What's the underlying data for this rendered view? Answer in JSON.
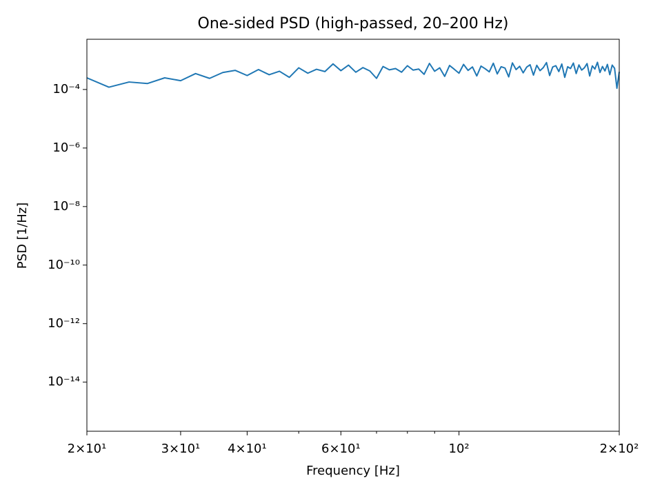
{
  "chart_data": {
    "type": "line",
    "title": "One-sided PSD (high-passed, 20–200 Hz)",
    "x_label": "Frequency [Hz]",
    "y_label": "PSD [1/Hz]",
    "xscale": "log",
    "yscale": "log",
    "xlim": [
      20,
      200
    ],
    "ylim": [
      2.1e-16,
      0.0052
    ],
    "xticks": [
      {
        "value": 20,
        "label": "2×10¹"
      },
      {
        "value": 30,
        "label": "3×10¹"
      },
      {
        "value": 40,
        "label": "4×10¹"
      },
      {
        "value": 60,
        "label": "6×10¹"
      },
      {
        "value": 100,
        "label": "10²"
      },
      {
        "value": 200,
        "label": "2×10²"
      }
    ],
    "xminor_ticks": [
      50,
      70,
      80,
      90
    ],
    "yticks": [
      {
        "value": 1e-14,
        "label": "10⁻¹⁴"
      },
      {
        "value": 1e-12,
        "label": "10⁻¹²"
      },
      {
        "value": 1e-10,
        "label": "10⁻¹⁰"
      },
      {
        "value": 1e-08,
        "label": "10⁻⁸"
      },
      {
        "value": 1e-06,
        "label": "10⁻⁶"
      },
      {
        "value": 0.0001,
        "label": "10⁻⁴"
      }
    ],
    "x": [
      20,
      22,
      24,
      26,
      28,
      30,
      32,
      34,
      36,
      38,
      40,
      42,
      44,
      46,
      48,
      50,
      52,
      54,
      56,
      58,
      60,
      62,
      64,
      66,
      68,
      70,
      72,
      74,
      76,
      78,
      80,
      82,
      84,
      86,
      88,
      90,
      92,
      94,
      96,
      98,
      100,
      102,
      104,
      106,
      108,
      110,
      112,
      114,
      116,
      118,
      120,
      122,
      124,
      126,
      128,
      130,
      132,
      134,
      136,
      138,
      140,
      142,
      144,
      146,
      148,
      150,
      152,
      154,
      156,
      158,
      160,
      162,
      164,
      166,
      168,
      170,
      172,
      174,
      176,
      178,
      180,
      182,
      184,
      186,
      188,
      190,
      192,
      194,
      196,
      198,
      200
    ],
    "series": [
      {
        "color": "#1f77b4",
        "values": [
          0.00025,
          0.00012,
          0.00018,
          0.00016,
          0.00025,
          0.0002,
          0.00035,
          0.00024,
          0.00038,
          0.00045,
          0.0003,
          0.00048,
          0.00032,
          0.00042,
          0.00026,
          0.00055,
          0.00036,
          0.00049,
          0.00041,
          0.00075,
          0.00044,
          0.00068,
          0.00039,
          0.00056,
          0.00043,
          0.00024,
          0.00061,
          0.00047,
          0.00052,
          0.00039,
          0.00065,
          0.00046,
          0.0005,
          0.00033,
          0.00078,
          0.00042,
          0.00055,
          0.00028,
          0.00066,
          0.00049,
          0.00036,
          0.00072,
          0.00045,
          0.00059,
          0.00029,
          0.00063,
          0.00051,
          0.0004,
          0.00079,
          0.00034,
          0.0006,
          0.00054,
          0.00027,
          0.00081,
          0.00048,
          0.00062,
          0.00037,
          0.00058,
          0.0007,
          0.00031,
          0.00067,
          0.00044,
          0.00056,
          0.00083,
          0.0003,
          0.00059,
          0.00065,
          0.00041,
          0.00074,
          0.00026,
          0.0006,
          0.00052,
          0.0008,
          0.00035,
          0.00069,
          0.00046,
          0.00055,
          0.00077,
          0.00029,
          0.00064,
          0.0005,
          0.00085,
          0.00038,
          0.00061,
          0.00043,
          0.00072,
          0.00032,
          0.00068,
          0.00053,
          0.00011,
          0.0004
        ]
      }
    ]
  }
}
